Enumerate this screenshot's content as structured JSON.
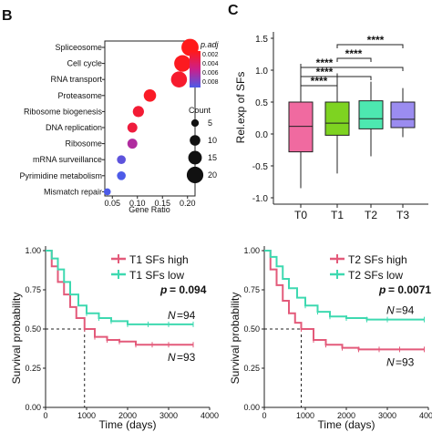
{
  "panels": {
    "b": "B",
    "c": "C"
  },
  "colors": {
    "low": "#4d5be8",
    "mid": "#cc1f8a",
    "high": "#ff1a1a",
    "spliceosome_label": "#b7202e",
    "T0": "#f06aa0",
    "T1": "#7ed321",
    "T2": "#4de8b0",
    "T3": "#9b8cf0",
    "km_high": "#e35a7a",
    "km_low": "#3ed9b0"
  },
  "chart_data": [
    {
      "type": "scatter",
      "name": "GO enrichment dotplot",
      "xlabel": "Gene Ratio",
      "x_ticks": [
        "0.05",
        "0.10",
        "0.15",
        "0.20"
      ],
      "xlim": [
        0.035,
        0.215
      ],
      "categories": [
        "Spliceosome",
        "Cell cycle",
        "RNA transport",
        "Proteasome",
        "Ribosome biogenesis",
        "DNA replication",
        "Ribosome",
        "mRNA surveillance",
        "Pyrimidine metabolism",
        "Mismatch repair"
      ],
      "points": [
        {
          "term": "Spliceosome",
          "gene_ratio": 0.205,
          "count": 21,
          "p_adj": 0.0003
        },
        {
          "term": "Cell cycle",
          "gene_ratio": 0.19,
          "count": 20,
          "p_adj": 0.0005
        },
        {
          "term": "RNA transport",
          "gene_ratio": 0.183,
          "count": 19,
          "p_adj": 0.001
        },
        {
          "term": "Proteasome",
          "gene_ratio": 0.125,
          "count": 13,
          "p_adj": 0.0007
        },
        {
          "term": "Ribosome biogenesis",
          "gene_ratio": 0.102,
          "count": 11,
          "p_adj": 0.0012
        },
        {
          "term": "DNA replication",
          "gene_ratio": 0.09,
          "count": 9,
          "p_adj": 0.0015
        },
        {
          "term": "Ribosome",
          "gene_ratio": 0.09,
          "count": 9,
          "p_adj": 0.005
        },
        {
          "term": "mRNA surveillance",
          "gene_ratio": 0.068,
          "count": 7,
          "p_adj": 0.0075
        },
        {
          "term": "Pyrimidine metabolism",
          "gene_ratio": 0.068,
          "count": 7,
          "p_adj": 0.008
        },
        {
          "term": "Mismatch repair",
          "gene_ratio": 0.04,
          "count": 4,
          "p_adj": 0.008
        }
      ],
      "colorbar": {
        "title": "p.adj",
        "ticks": [
          "0.002",
          "0.004",
          "0.006",
          "0.008"
        ]
      },
      "size_legend": {
        "title": "Count",
        "values": [
          "5",
          "10",
          "15",
          "20"
        ]
      }
    },
    {
      "type": "box",
      "name": "Rel.exp of SFs",
      "ylabel": "Rel.exp of SFs",
      "ylim": [
        -1.1,
        1.6
      ],
      "y_ticks": [
        "1.5",
        "1.0",
        "0.5",
        "0.0",
        "-0.5",
        "-1.0"
      ],
      "categories": [
        "T0",
        "T1",
        "T2",
        "T3"
      ],
      "boxes": [
        {
          "group": "T0",
          "min": -0.85,
          "q1": -0.28,
          "median": 0.12,
          "q3": 0.5,
          "max": 1.1
        },
        {
          "group": "T1",
          "min": -0.62,
          "q1": -0.02,
          "median": 0.17,
          "q3": 0.5,
          "max": 0.95
        },
        {
          "group": "T2",
          "min": -0.35,
          "q1": 0.08,
          "median": 0.24,
          "q3": 0.52,
          "max": 0.82
        },
        {
          "group": "T3",
          "min": -0.05,
          "q1": 0.1,
          "median": 0.23,
          "q3": 0.5,
          "max": 0.72
        }
      ],
      "significance": [
        {
          "from": "T0",
          "to": "T1",
          "label": "****"
        },
        {
          "from": "T0",
          "to": "T2",
          "label": "****"
        },
        {
          "from": "T0",
          "to": "T3",
          "label": "****"
        },
        {
          "from": "T1",
          "to": "T2",
          "label": "****"
        },
        {
          "from": "T1",
          "to": "T3",
          "label": "****"
        }
      ]
    },
    {
      "type": "line",
      "name": "KM T1",
      "xlabel": "Time (days)",
      "ylabel": "Survival probability",
      "x_ticks": [
        "0",
        "1000",
        "2000",
        "3000",
        "4000"
      ],
      "y_ticks": [
        "1.00",
        "0.75",
        "0.50",
        "0.25",
        "0.00"
      ],
      "xlim": [
        0,
        4000
      ],
      "ylim": [
        0,
        1.0
      ],
      "median_time": 950,
      "series": [
        {
          "name": "T1 SFs high",
          "n_label": "N=93",
          "x": [
            0,
            150,
            300,
            450,
            600,
            750,
            950,
            1200,
            1500,
            1800,
            2200,
            2600,
            3000,
            3600
          ],
          "y": [
            1.0,
            0.9,
            0.8,
            0.72,
            0.64,
            0.57,
            0.5,
            0.45,
            0.43,
            0.42,
            0.4,
            0.4,
            0.4,
            0.4
          ]
        },
        {
          "name": "T1 SFs low",
          "n_label": "N=94",
          "x": [
            0,
            150,
            300,
            450,
            600,
            800,
            1000,
            1300,
            1600,
            2000,
            2500,
            3000,
            3600
          ],
          "y": [
            1.0,
            0.95,
            0.88,
            0.8,
            0.72,
            0.65,
            0.6,
            0.57,
            0.55,
            0.53,
            0.53,
            0.53,
            0.53
          ]
        }
      ],
      "p_label": "p",
      "p_value": "= 0.094",
      "n_prefix": "N",
      "n_high": "=93",
      "n_low": "=94"
    },
    {
      "type": "line",
      "name": "KM T2",
      "xlabel": "Time (days)",
      "ylabel": "Survival probability",
      "x_ticks": [
        "0",
        "1000",
        "2000",
        "3000",
        "4000"
      ],
      "y_ticks": [
        "1.00",
        "0.75",
        "0.50",
        "0.25",
        "0.00"
      ],
      "xlim": [
        0,
        4000
      ],
      "ylim": [
        0,
        1.0
      ],
      "median_time": 900,
      "series": [
        {
          "name": "T2 SFs high",
          "x": [
            0,
            150,
            300,
            450,
            600,
            750,
            900,
            1200,
            1500,
            1900,
            2300,
            2800,
            3300,
            3900
          ],
          "y": [
            1.0,
            0.88,
            0.78,
            0.68,
            0.6,
            0.54,
            0.5,
            0.43,
            0.4,
            0.38,
            0.37,
            0.37,
            0.37,
            0.37
          ]
        },
        {
          "name": "T2 SFs low",
          "x": [
            0,
            150,
            300,
            450,
            600,
            800,
            1000,
            1300,
            1600,
            2000,
            2500,
            3000,
            3900
          ],
          "y": [
            1.0,
            0.96,
            0.9,
            0.82,
            0.76,
            0.7,
            0.65,
            0.61,
            0.58,
            0.57,
            0.56,
            0.56,
            0.56
          ]
        }
      ],
      "p_label": "p",
      "p_value": "= 0.0071",
      "n_prefix": "N",
      "n_high": "=93",
      "n_low": "=94"
    }
  ]
}
